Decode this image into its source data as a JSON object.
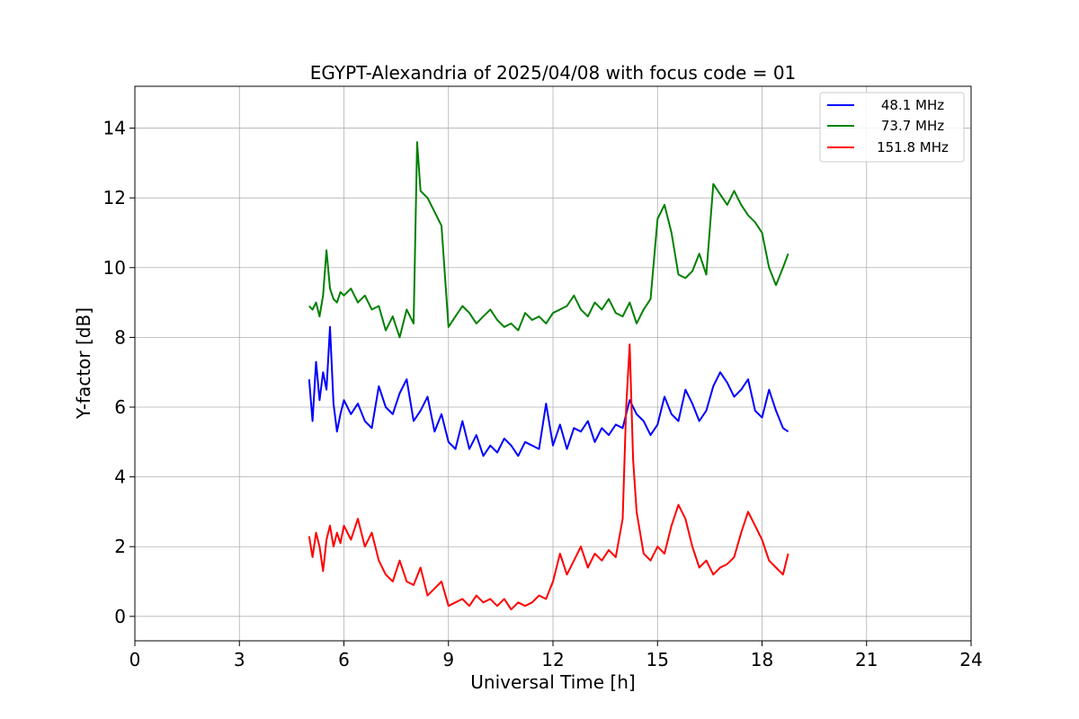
{
  "chart_data": {
    "type": "line",
    "title": "EGYPT-Alexandria of 2025/04/08 with focus code = 01",
    "xlabel": "Universal Time [h]",
    "ylabel": "Y-factor [dB]",
    "xlim": [
      0,
      24
    ],
    "ylim": [
      -0.7,
      15.2
    ],
    "xticks": [
      0,
      3,
      6,
      9,
      12,
      15,
      18,
      21,
      24
    ],
    "yticks": [
      0,
      2,
      4,
      6,
      8,
      10,
      12,
      14
    ],
    "grid": true,
    "legend_position": "top-right",
    "series": [
      {
        "name": "48.1 MHz",
        "color": "#0000ff",
        "x": [
          5.0,
          5.1,
          5.2,
          5.3,
          5.4,
          5.5,
          5.6,
          5.7,
          5.8,
          5.9,
          6.0,
          6.2,
          6.4,
          6.6,
          6.8,
          7.0,
          7.2,
          7.4,
          7.6,
          7.8,
          8.0,
          8.2,
          8.4,
          8.6,
          8.8,
          9.0,
          9.2,
          9.4,
          9.6,
          9.8,
          10.0,
          10.2,
          10.4,
          10.6,
          10.8,
          11.0,
          11.2,
          11.4,
          11.6,
          11.8,
          12.0,
          12.2,
          12.4,
          12.6,
          12.8,
          13.0,
          13.2,
          13.4,
          13.6,
          13.8,
          14.0,
          14.2,
          14.4,
          14.6,
          14.8,
          15.0,
          15.2,
          15.4,
          15.6,
          15.8,
          16.0,
          16.2,
          16.4,
          16.6,
          16.8,
          17.0,
          17.2,
          17.4,
          17.6,
          17.8,
          18.0,
          18.2,
          18.4,
          18.6,
          18.75
        ],
        "values": [
          6.8,
          5.6,
          7.3,
          6.2,
          7.0,
          6.5,
          8.3,
          6.1,
          5.3,
          5.8,
          6.2,
          5.8,
          6.1,
          5.6,
          5.4,
          6.6,
          6.0,
          5.8,
          6.4,
          6.8,
          5.6,
          5.9,
          6.3,
          5.3,
          5.8,
          5.0,
          4.8,
          5.6,
          4.8,
          5.2,
          4.6,
          4.9,
          4.7,
          5.1,
          4.9,
          4.6,
          5.0,
          4.9,
          4.8,
          6.1,
          4.9,
          5.5,
          4.8,
          5.4,
          5.3,
          5.6,
          5.0,
          5.4,
          5.2,
          5.5,
          5.4,
          6.2,
          5.8,
          5.6,
          5.2,
          5.5,
          6.3,
          5.8,
          5.6,
          6.5,
          6.1,
          5.6,
          5.9,
          6.6,
          7.0,
          6.7,
          6.3,
          6.5,
          6.8,
          5.9,
          5.7,
          6.5,
          5.9,
          5.4,
          5.3
        ]
      },
      {
        "name": "73.7 MHz",
        "color": "#008000",
        "x": [
          5.0,
          5.1,
          5.2,
          5.3,
          5.4,
          5.5,
          5.6,
          5.7,
          5.8,
          5.9,
          6.0,
          6.2,
          6.4,
          6.6,
          6.8,
          7.0,
          7.2,
          7.4,
          7.6,
          7.8,
          8.0,
          8.1,
          8.2,
          8.4,
          8.6,
          8.8,
          9.0,
          9.2,
          9.4,
          9.6,
          9.8,
          10.0,
          10.2,
          10.4,
          10.6,
          10.8,
          11.0,
          11.2,
          11.4,
          11.6,
          11.8,
          12.0,
          12.2,
          12.4,
          12.6,
          12.8,
          13.0,
          13.2,
          13.4,
          13.6,
          13.8,
          14.0,
          14.2,
          14.4,
          14.6,
          14.8,
          15.0,
          15.2,
          15.4,
          15.6,
          15.8,
          16.0,
          16.2,
          16.4,
          16.6,
          16.8,
          17.0,
          17.2,
          17.4,
          17.6,
          17.8,
          18.0,
          18.2,
          18.4,
          18.6,
          18.75
        ],
        "values": [
          8.9,
          8.8,
          9.0,
          8.6,
          9.2,
          10.5,
          9.4,
          9.1,
          9.0,
          9.3,
          9.2,
          9.4,
          9.0,
          9.2,
          8.8,
          8.9,
          8.2,
          8.6,
          8.0,
          8.8,
          8.4,
          13.6,
          12.2,
          12.0,
          11.6,
          11.2,
          8.3,
          8.6,
          8.9,
          8.7,
          8.4,
          8.6,
          8.8,
          8.5,
          8.3,
          8.4,
          8.2,
          8.7,
          8.5,
          8.6,
          8.4,
          8.7,
          8.8,
          8.9,
          9.2,
          8.8,
          8.6,
          9.0,
          8.8,
          9.1,
          8.7,
          8.6,
          9.0,
          8.4,
          8.8,
          9.1,
          11.4,
          11.8,
          11.0,
          9.8,
          9.7,
          9.9,
          10.4,
          9.8,
          12.4,
          12.1,
          11.8,
          12.2,
          11.8,
          11.5,
          11.3,
          11.0,
          10.0,
          9.5,
          10.0,
          10.4
        ]
      },
      {
        "name": "151.8 MHz",
        "color": "#ff0000",
        "x": [
          5.0,
          5.1,
          5.2,
          5.3,
          5.4,
          5.5,
          5.6,
          5.7,
          5.8,
          5.9,
          6.0,
          6.2,
          6.4,
          6.6,
          6.8,
          7.0,
          7.2,
          7.4,
          7.6,
          7.8,
          8.0,
          8.2,
          8.4,
          8.6,
          8.8,
          9.0,
          9.2,
          9.4,
          9.6,
          9.8,
          10.0,
          10.2,
          10.4,
          10.6,
          10.8,
          11.0,
          11.2,
          11.4,
          11.6,
          11.8,
          12.0,
          12.2,
          12.4,
          12.6,
          12.8,
          13.0,
          13.2,
          13.4,
          13.6,
          13.8,
          14.0,
          14.1,
          14.2,
          14.3,
          14.4,
          14.6,
          14.8,
          15.0,
          15.2,
          15.4,
          15.6,
          15.8,
          16.0,
          16.2,
          16.4,
          16.6,
          16.8,
          17.0,
          17.2,
          17.4,
          17.6,
          17.8,
          18.0,
          18.2,
          18.4,
          18.6,
          18.75
        ],
        "values": [
          2.3,
          1.7,
          2.4,
          2.0,
          1.3,
          2.2,
          2.6,
          2.0,
          2.4,
          2.1,
          2.6,
          2.2,
          2.8,
          2.0,
          2.4,
          1.6,
          1.2,
          1.0,
          1.6,
          1.0,
          0.9,
          1.4,
          0.6,
          0.8,
          1.0,
          0.3,
          0.4,
          0.5,
          0.3,
          0.6,
          0.4,
          0.5,
          0.3,
          0.5,
          0.2,
          0.4,
          0.3,
          0.4,
          0.6,
          0.5,
          1.0,
          1.8,
          1.2,
          1.6,
          2.0,
          1.4,
          1.8,
          1.6,
          1.9,
          1.7,
          2.8,
          6.0,
          7.8,
          4.5,
          3.0,
          1.8,
          1.6,
          2.0,
          1.8,
          2.6,
          3.2,
          2.8,
          2.0,
          1.4,
          1.6,
          1.2,
          1.4,
          1.5,
          1.7,
          2.4,
          3.0,
          2.6,
          2.2,
          1.6,
          1.4,
          1.2,
          1.8
        ]
      }
    ]
  }
}
